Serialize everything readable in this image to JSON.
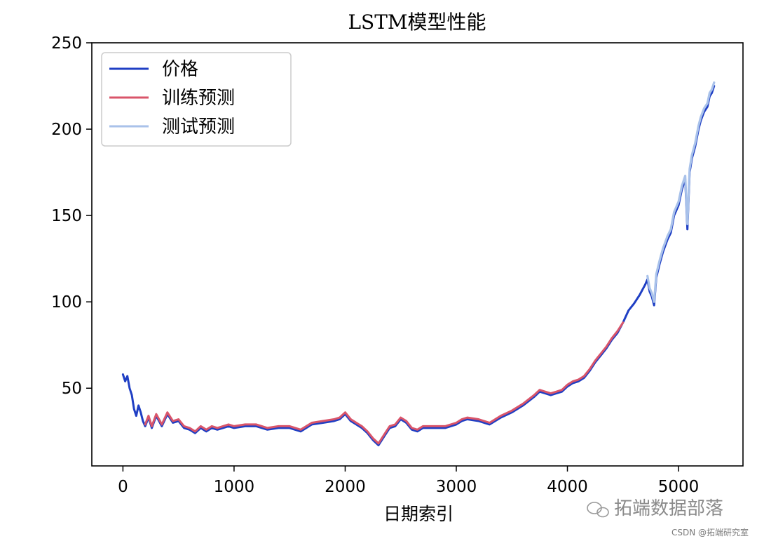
{
  "chart_data": {
    "type": "line",
    "title": "LSTM模型性能",
    "xlabel": "日期索引",
    "ylabel": "",
    "xlim": [
      -280,
      5580
    ],
    "ylim": [
      5,
      250
    ],
    "x_ticks": [
      0,
      1000,
      2000,
      3000,
      4000,
      5000
    ],
    "y_ticks": [
      50,
      100,
      150,
      200,
      250
    ],
    "x_tick_labels": [
      "0",
      "1000",
      "2000",
      "3000",
      "4000",
      "5000"
    ],
    "y_tick_labels": [
      "50",
      "100",
      "150",
      "200",
      "250"
    ],
    "grid": false,
    "legend_position": "top-left",
    "series": [
      {
        "name": "价格",
        "color": "#1f3fc4",
        "x": [
          0,
          20,
          40,
          60,
          80,
          100,
          120,
          140,
          160,
          180,
          200,
          230,
          260,
          300,
          350,
          400,
          450,
          500,
          550,
          600,
          650,
          700,
          750,
          800,
          850,
          900,
          950,
          1000,
          1100,
          1200,
          1300,
          1400,
          1500,
          1600,
          1700,
          1800,
          1900,
          1950,
          2000,
          2050,
          2100,
          2150,
          2200,
          2250,
          2300,
          2350,
          2400,
          2450,
          2500,
          2550,
          2600,
          2650,
          2700,
          2800,
          2900,
          3000,
          3050,
          3100,
          3200,
          3300,
          3400,
          3500,
          3600,
          3700,
          3750,
          3800,
          3850,
          3900,
          3950,
          4000,
          4050,
          4100,
          4150,
          4200,
          4250,
          4300,
          4350,
          4400,
          4450,
          4500,
          4550,
          4600,
          4650,
          4700,
          4720,
          4740,
          4760,
          4780,
          4800,
          4830,
          4860,
          4900,
          4930,
          4960,
          5000,
          5030,
          5060,
          5080,
          5100,
          5120,
          5150,
          5180,
          5200,
          5230,
          5260,
          5280,
          5300,
          5320
        ],
        "values": [
          58,
          54,
          57,
          50,
          46,
          38,
          34,
          40,
          36,
          31,
          28,
          33,
          27,
          34,
          28,
          35,
          30,
          31,
          27,
          26,
          24,
          27,
          25,
          27,
          26,
          27,
          28,
          27,
          28,
          28,
          26,
          27,
          27,
          25,
          29,
          30,
          31,
          32,
          35,
          31,
          29,
          27,
          24,
          20,
          17,
          22,
          27,
          28,
          32,
          30,
          26,
          25,
          27,
          27,
          27,
          29,
          31,
          32,
          31,
          29,
          33,
          36,
          40,
          45,
          48,
          47,
          46,
          47,
          48,
          51,
          53,
          54,
          56,
          60,
          65,
          69,
          73,
          78,
          82,
          88,
          95,
          99,
          104,
          110,
          113,
          106,
          103,
          98,
          114,
          122,
          129,
          136,
          140,
          150,
          156,
          165,
          171,
          142,
          175,
          183,
          190,
          200,
          205,
          210,
          213,
          219,
          221,
          225
        ]
      },
      {
        "name": "训练预测",
        "color": "#d9556a",
        "x": [
          200,
          230,
          260,
          300,
          350,
          400,
          450,
          500,
          550,
          600,
          650,
          700,
          750,
          800,
          850,
          900,
          950,
          1000,
          1100,
          1200,
          1300,
          1400,
          1500,
          1600,
          1700,
          1800,
          1900,
          1950,
          2000,
          2050,
          2100,
          2150,
          2200,
          2250,
          2300,
          2350,
          2400,
          2450,
          2500,
          2550,
          2600,
          2650,
          2700,
          2800,
          2900,
          3000,
          3050,
          3100,
          3200,
          3300,
          3400,
          3500,
          3600,
          3700,
          3750,
          3800,
          3850,
          3900,
          3950,
          4000,
          4050,
          4100,
          4150,
          4200,
          4250,
          4300,
          4350,
          4400,
          4450,
          4500
        ],
        "values": [
          29,
          34,
          28,
          35,
          29,
          36,
          31,
          32,
          28,
          27,
          25,
          28,
          26,
          28,
          27,
          28,
          29,
          28,
          29,
          29,
          27,
          28,
          28,
          26,
          30,
          31,
          32,
          33,
          36,
          32,
          30,
          28,
          25,
          21,
          18,
          23,
          28,
          29,
          33,
          31,
          27,
          26,
          28,
          28,
          28,
          30,
          32,
          33,
          32,
          30,
          34,
          37,
          41,
          46,
          49,
          48,
          47,
          48,
          49,
          52,
          54,
          55,
          57,
          61,
          66,
          70,
          74,
          79,
          83,
          88
        ]
      },
      {
        "name": "测试预测",
        "color": "#a9c2ea",
        "x": [
          4720,
          4740,
          4760,
          4780,
          4800,
          4830,
          4860,
          4900,
          4930,
          4960,
          5000,
          5030,
          5060,
          5080,
          5100,
          5120,
          5150,
          5180,
          5200,
          5230,
          5260,
          5280,
          5300,
          5320
        ],
        "values": [
          115,
          108,
          105,
          100,
          116,
          124,
          131,
          138,
          142,
          152,
          158,
          167,
          173,
          145,
          177,
          185,
          192,
          202,
          207,
          212,
          215,
          221,
          223,
          227
        ]
      }
    ]
  },
  "watermark": {
    "main": "拓端数据部落",
    "small": "CSDN @拓端研究室"
  }
}
